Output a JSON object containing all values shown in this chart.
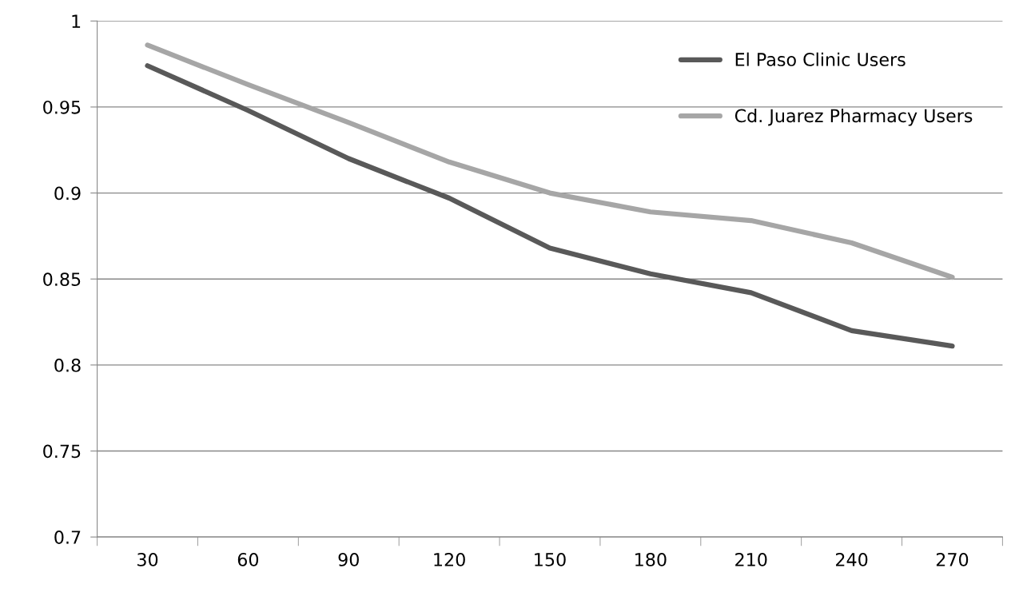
{
  "chart_data": {
    "type": "line",
    "categories": [
      "30",
      "60",
      "90",
      "120",
      "150",
      "180",
      "210",
      "240",
      "270"
    ],
    "series": [
      {
        "name": "El Paso Clinic Users",
        "color": "#595959",
        "values": [
          0.974,
          0.948,
          0.92,
          0.897,
          0.868,
          0.853,
          0.842,
          0.82,
          0.811
        ]
      },
      {
        "name": "Cd. Juarez Pharmacy Users",
        "color": "#a6a6a6",
        "values": [
          0.986,
          0.963,
          0.941,
          0.918,
          0.9,
          0.889,
          0.884,
          0.871,
          0.851
        ]
      }
    ],
    "ylim": [
      0.7,
      1
    ],
    "yticks": [
      {
        "value": 0.7,
        "label": "0.7"
      },
      {
        "value": 0.75,
        "label": "0.75"
      },
      {
        "value": 0.8,
        "label": "0.8"
      },
      {
        "value": 0.85,
        "label": "0.85"
      },
      {
        "value": 0.9,
        "label": "0.9"
      },
      {
        "value": 0.95,
        "label": "0.95"
      },
      {
        "value": 1,
        "label": "1"
      }
    ],
    "grid": "y",
    "legend": "top right",
    "marker": "none",
    "line_style": "solid"
  }
}
